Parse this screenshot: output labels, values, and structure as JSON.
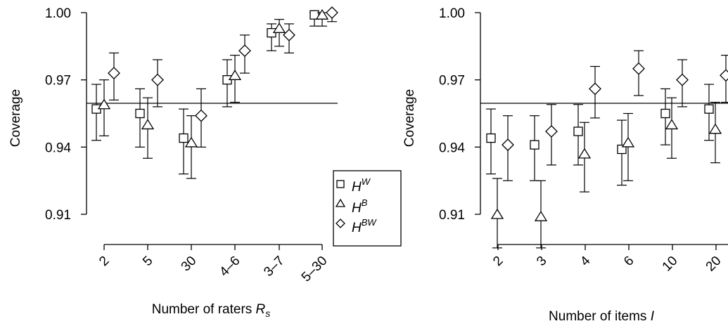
{
  "chart_data": [
    {
      "type": "scatter",
      "panel": "left",
      "xlabel": "Number of raters",
      "xlabel_var": "R",
      "xlabel_sub": "s",
      "ylabel": "Coverage",
      "ylim": [
        0.9,
        1.0
      ],
      "yticks": [
        "0.91",
        "0.94",
        "0.97",
        "1.00"
      ],
      "reference_line": 0.95,
      "categories": [
        "2",
        "5",
        "30",
        "4–6",
        "3–7",
        "5–30"
      ],
      "series": [
        {
          "name": "H^W",
          "marker": "square",
          "values": [
            0.957,
            0.955,
            0.944,
            0.97,
            0.991,
            0.999
          ],
          "lower": [
            0.943,
            0.94,
            0.928,
            0.958,
            0.983,
            0.994
          ],
          "upper": [
            0.968,
            0.966,
            0.957,
            0.979,
            0.995,
            1.0
          ]
        },
        {
          "name": "H^B",
          "marker": "triangle",
          "values": [
            0.959,
            0.95,
            0.942,
            0.972,
            0.993,
            0.999
          ],
          "lower": [
            0.945,
            0.935,
            0.926,
            0.96,
            0.985,
            0.994
          ],
          "upper": [
            0.97,
            0.962,
            0.954,
            0.981,
            0.997,
            1.0
          ]
        },
        {
          "name": "H^BW",
          "marker": "diamond",
          "values": [
            0.973,
            0.97,
            0.954,
            0.983,
            0.99,
            1.0
          ],
          "lower": [
            0.961,
            0.958,
            0.94,
            0.973,
            0.982,
            0.996
          ],
          "upper": [
            0.982,
            0.979,
            0.966,
            0.99,
            0.995,
            1.0
          ]
        }
      ],
      "legend": {
        "placement": "right",
        "entries": [
          {
            "base": "H",
            "sup": "W"
          },
          {
            "base": "H",
            "sup": "B"
          },
          {
            "base": "H",
            "sup": "BW"
          }
        ]
      }
    },
    {
      "type": "scatter",
      "panel": "right",
      "xlabel": "Number of items",
      "xlabel_var": "I",
      "ylabel": "Coverage",
      "ylim": [
        0.9,
        1.0
      ],
      "yticks": [
        "0.91",
        "0.94",
        "0.97",
        "1.00"
      ],
      "reference_line": 0.95,
      "categories": [
        "2",
        "3",
        "4",
        "6",
        "10",
        "20"
      ],
      "series": [
        {
          "name": "H^W",
          "marker": "square",
          "values": [
            0.944,
            0.941,
            0.947,
            0.939,
            0.955,
            0.957
          ],
          "lower": [
            0.928,
            0.925,
            0.932,
            0.923,
            0.941,
            0.943
          ],
          "upper": [
            0.957,
            0.954,
            0.959,
            0.952,
            0.966,
            0.968
          ]
        },
        {
          "name": "H^B",
          "marker": "triangle",
          "values": [
            0.91,
            0.909,
            0.937,
            0.942,
            0.95,
            0.948
          ],
          "lower": [
            0.895,
            0.895,
            0.92,
            0.925,
            0.935,
            0.933
          ],
          "upper": [
            0.926,
            0.925,
            0.951,
            0.955,
            0.962,
            0.96
          ]
        },
        {
          "name": "H^BW",
          "marker": "diamond",
          "values": [
            0.941,
            0.947,
            0.966,
            0.975,
            0.97,
            0.972
          ],
          "lower": [
            0.925,
            0.932,
            0.953,
            0.963,
            0.958,
            0.96
          ],
          "upper": [
            0.954,
            0.959,
            0.976,
            0.983,
            0.979,
            0.981
          ]
        }
      ]
    }
  ]
}
